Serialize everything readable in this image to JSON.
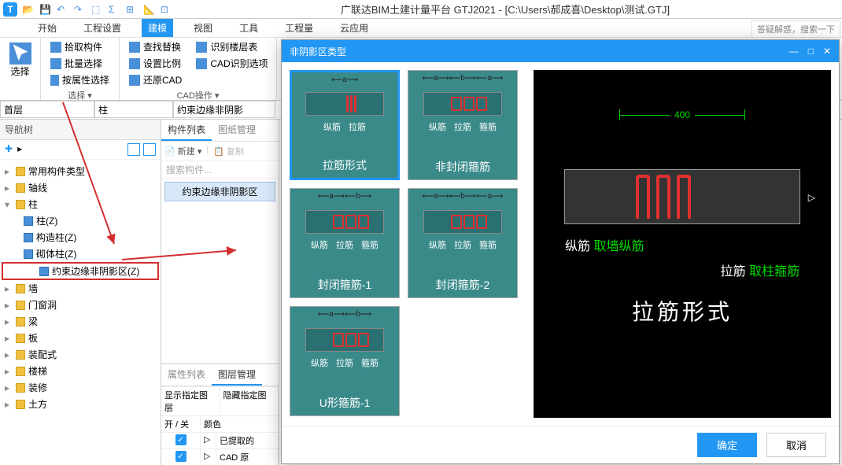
{
  "window": {
    "title": "广联达BIM土建计量平台 GTJ2021 - [C:\\Users\\郝成喜\\Desktop\\测试.GTJ]",
    "help": "答疑解惑，搜索一下"
  },
  "menu": {
    "items": [
      "开始",
      "工程设置",
      "建模",
      "视图",
      "工具",
      "工程量",
      "云应用"
    ],
    "active_index": 2
  },
  "ribbon": {
    "select_group": {
      "big": "选择",
      "footer": "选择 ▾",
      "items": [
        "拾取构件",
        "批量选择",
        "按属性选择"
      ]
    },
    "cad_group": {
      "footer": "CAD操作 ▾",
      "col1": [
        "查找替换",
        "设置比例",
        "还原CAD"
      ],
      "col2": [
        "识别楼层表",
        "CAD识别选项"
      ]
    }
  },
  "dropdowns": {
    "d1": "首层",
    "d2": "柱",
    "d3": "约束边缘非阴影"
  },
  "nav": {
    "header": "导航树",
    "items": [
      {
        "label": "常用构件类型",
        "level": 1
      },
      {
        "label": "轴线",
        "level": 1
      },
      {
        "label": "柱",
        "level": 1,
        "expanded": true
      },
      {
        "label": "柱(Z)",
        "level": 2,
        "sub": true
      },
      {
        "label": "构造柱(Z)",
        "level": 2,
        "sub": true
      },
      {
        "label": "砌体柱(Z)",
        "level": 2,
        "sub": true
      },
      {
        "label": "约束边缘非阴影区(Z)",
        "level": 2,
        "sub": true,
        "highlighted": true
      },
      {
        "label": "墙",
        "level": 1
      },
      {
        "label": "门窗洞",
        "level": 1
      },
      {
        "label": "梁",
        "level": 1
      },
      {
        "label": "板",
        "level": 1
      },
      {
        "label": "装配式",
        "level": 1
      },
      {
        "label": "楼梯",
        "level": 1
      },
      {
        "label": "装修",
        "level": 1
      },
      {
        "label": "土方",
        "level": 1
      }
    ]
  },
  "mid": {
    "tabs": [
      "构件列表",
      "图纸管理"
    ],
    "active_tab": 0,
    "toolbar": {
      "new": "新建",
      "copy": "复制"
    },
    "search_placeholder": "搜索构件...",
    "list_item": "约束边缘非阴影区",
    "prop_tabs": [
      "属性列表",
      "图层管理"
    ],
    "prop_active": 1,
    "prop_header": {
      "show": "显示指定图层",
      "hide": "隐藏指定图"
    },
    "prop_cols": {
      "c1": "开 / 关",
      "c2": "颜色"
    },
    "prop_rows": [
      {
        "checked": true,
        "arrow": "▷",
        "label": "已提取的"
      },
      {
        "checked": true,
        "arrow": "▷",
        "label": "CAD 原"
      }
    ]
  },
  "dialog": {
    "title": "非阴影区类型",
    "options": [
      {
        "name": "拉筋形式",
        "dim": "⟵a⟶",
        "labels": [
          "纵筋",
          "拉筋"
        ],
        "style": "bars",
        "selected": true
      },
      {
        "name": "非封闭箍筋",
        "dim": "⟵a⟶⟵b⟶⟵a⟶",
        "labels": [
          "纵筋",
          "拉筋",
          "箍筋"
        ],
        "style": "hoops"
      },
      {
        "name": "封闭箍筋-1",
        "dim": "⟵a⟶⟵b⟶",
        "labels": [
          "纵筋",
          "拉筋",
          "箍筋"
        ],
        "style": "hoops"
      },
      {
        "name": "封闭箍筋-2",
        "dim": "⟵a⟶⟵b⟶⟵a⟶",
        "labels": [
          "纵筋",
          "拉筋",
          "箍筋"
        ],
        "style": "hoops"
      },
      {
        "name": "U形箍筋-1",
        "dim": "⟵a⟶⟵b⟶",
        "labels": [
          "纵筋",
          "拉筋",
          "箍筋"
        ],
        "style": "hoops"
      }
    ],
    "preview": {
      "dimension": "400",
      "label1_a": "纵筋",
      "label1_b": "取墙纵筋",
      "label2_a": "拉筋",
      "label2_b": "取柱箍筋",
      "big_name": "拉筋形式"
    },
    "ok": "确定",
    "cancel": "取消"
  },
  "colors": {
    "primary": "#2196f3",
    "teal": "#3a8a8a",
    "rebar": "#e03030",
    "green": "#00dd00",
    "highlight_border": "#d32f2f"
  }
}
